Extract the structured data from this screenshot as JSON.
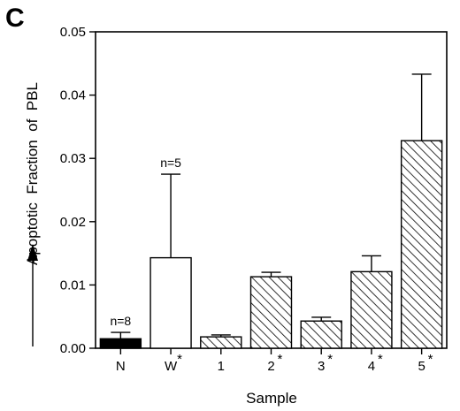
{
  "panel_label": "C",
  "chart_data": {
    "type": "bar",
    "title": "",
    "xlabel": "Sample",
    "ylabel": "Apoptotic  Fraction  of  PBL",
    "ylim": [
      0,
      0.05
    ],
    "yticks": [
      "0.00",
      "0.01",
      "0.02",
      "0.03",
      "0.04",
      "0.05"
    ],
    "ytick_values": [
      0,
      0.01,
      0.02,
      0.03,
      0.04,
      0.05
    ],
    "categories": [
      "N",
      "W",
      "1",
      "2",
      "3",
      "4",
      "5"
    ],
    "significance": [
      "",
      "*",
      "",
      "*",
      "*",
      "*",
      "*"
    ],
    "values": [
      0.0015,
      0.0143,
      0.0018,
      0.0113,
      0.0043,
      0.0121,
      0.0328
    ],
    "errors": [
      0.001,
      0.0132,
      0.0003,
      0.0007,
      0.0006,
      0.0025,
      0.0105
    ],
    "fills": [
      "solid",
      "white",
      "hatched",
      "hatched",
      "hatched",
      "hatched",
      "hatched"
    ],
    "annotations": [
      {
        "category": "N",
        "text": "n=8"
      },
      {
        "category": "W",
        "text": "n=5"
      }
    ],
    "grid": false,
    "legend": "none"
  }
}
